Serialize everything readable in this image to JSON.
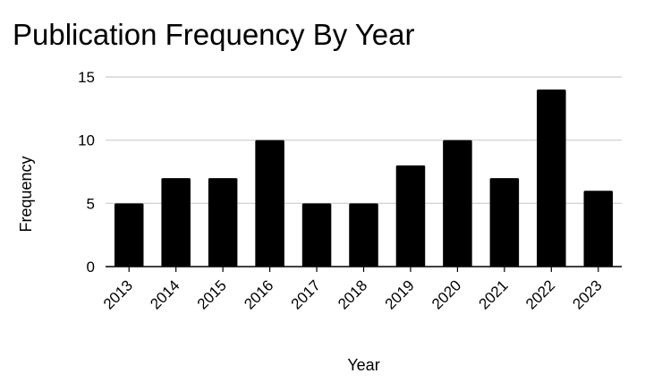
{
  "chart_data": {
    "type": "bar",
    "title": "Publication Frequency By Year",
    "xlabel": "Year",
    "ylabel": "Frequency",
    "categories": [
      "2013",
      "2014",
      "2015",
      "2016",
      "2017",
      "2018",
      "2019",
      "2020",
      "2021",
      "2022",
      "2023"
    ],
    "values": [
      5,
      7,
      7,
      10,
      5,
      5,
      8,
      10,
      7,
      14,
      6
    ],
    "ylim": [
      0,
      15
    ],
    "yticks": [
      0,
      5,
      10,
      15
    ],
    "grid": true,
    "legend": "none",
    "bar_color": "#000000",
    "grid_color": "#cccccc"
  }
}
